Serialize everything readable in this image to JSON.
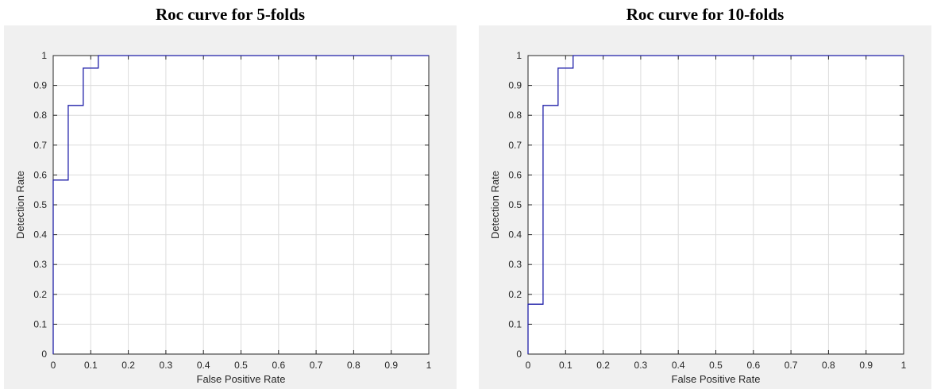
{
  "chart_data": [
    {
      "type": "line",
      "title": "Roc curve for 5-folds",
      "xlabel": "False Positive Rate",
      "ylabel": "Detection Rate",
      "xlim": [
        0,
        1
      ],
      "ylim": [
        0,
        1
      ],
      "xticks": [
        "0",
        "0.1",
        "0.2",
        "0.3",
        "0.4",
        "0.5",
        "0.6",
        "0.7",
        "0.8",
        "0.9",
        "1"
      ],
      "yticks": [
        "0",
        "0.1",
        "0.2",
        "0.3",
        "0.4",
        "0.5",
        "0.6",
        "0.7",
        "0.8",
        "0.9",
        "1"
      ],
      "grid": true,
      "series": [
        {
          "color": "#1f1fa8",
          "x": [
            0,
            0,
            0.04,
            0.04,
            0.08,
            0.08,
            0.12,
            0.12,
            1
          ],
          "y": [
            0,
            0.583,
            0.583,
            0.833,
            0.833,
            0.958,
            0.958,
            1,
            1
          ]
        }
      ]
    },
    {
      "type": "line",
      "title": "Roc curve for 10-folds",
      "xlabel": "False Positive Rate",
      "ylabel": "Detection Rate",
      "xlim": [
        0,
        1
      ],
      "ylim": [
        0,
        1
      ],
      "xticks": [
        "0",
        "0.1",
        "0.2",
        "0.3",
        "0.4",
        "0.5",
        "0.6",
        "0.7",
        "0.8",
        "0.9",
        "1"
      ],
      "yticks": [
        "0",
        "0.1",
        "0.2",
        "0.3",
        "0.4",
        "0.5",
        "0.6",
        "0.7",
        "0.8",
        "0.9",
        "1"
      ],
      "grid": true,
      "series": [
        {
          "color": "#1f1fa8",
          "x": [
            0,
            0,
            0.04,
            0.04,
            0.08,
            0.08,
            0.12,
            0.12,
            1
          ],
          "y": [
            0,
            0.167,
            0.167,
            0.833,
            0.833,
            0.958,
            0.958,
            1,
            1
          ]
        }
      ]
    }
  ]
}
